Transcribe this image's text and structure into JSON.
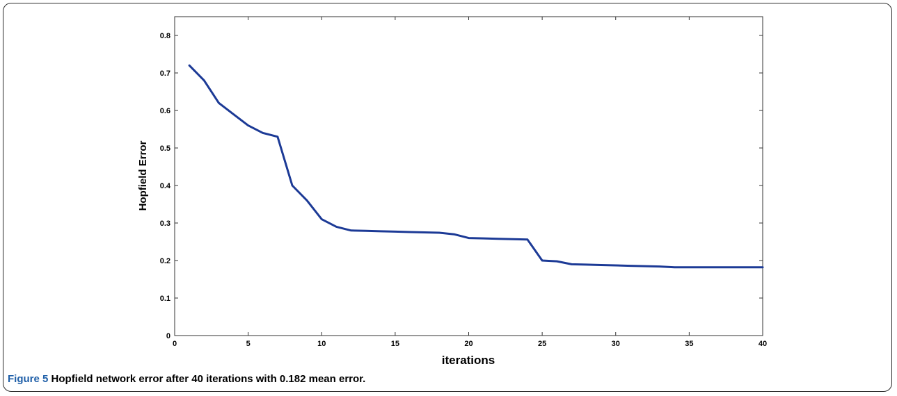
{
  "figure": {
    "label": "Figure 5",
    "caption": "Hopfield network error after 40 iterations with 0.182 mean error."
  },
  "chart_data": {
    "type": "line",
    "xlabel": "iterations",
    "ylabel": "Hopfield Error",
    "xlim": [
      0,
      40
    ],
    "ylim": [
      0,
      0.85
    ],
    "x_ticks": [
      0,
      5,
      10,
      15,
      20,
      25,
      30,
      35,
      40
    ],
    "y_ticks": [
      0,
      0.1,
      0.2,
      0.3,
      0.4,
      0.5,
      0.6,
      0.7,
      0.8
    ],
    "grid": false,
    "line_color": "#1c3a96",
    "series": [
      {
        "x": [
          1,
          2,
          3,
          4,
          5,
          6,
          7,
          8,
          9,
          10,
          11,
          12,
          13,
          14,
          15,
          16,
          17,
          18,
          19,
          20,
          21,
          22,
          23,
          24,
          25,
          26,
          27,
          28,
          29,
          30,
          31,
          32,
          33,
          34,
          35,
          36,
          37,
          38,
          39,
          40
        ],
        "y": [
          0.72,
          0.68,
          0.62,
          0.59,
          0.56,
          0.54,
          0.53,
          0.4,
          0.36,
          0.31,
          0.29,
          0.28,
          0.279,
          0.278,
          0.277,
          0.276,
          0.275,
          0.274,
          0.27,
          0.26,
          0.259,
          0.258,
          0.257,
          0.256,
          0.2,
          0.198,
          0.19,
          0.189,
          0.188,
          0.187,
          0.186,
          0.185,
          0.184,
          0.182,
          0.182,
          0.182,
          0.182,
          0.182,
          0.182,
          0.182
        ]
      }
    ]
  }
}
